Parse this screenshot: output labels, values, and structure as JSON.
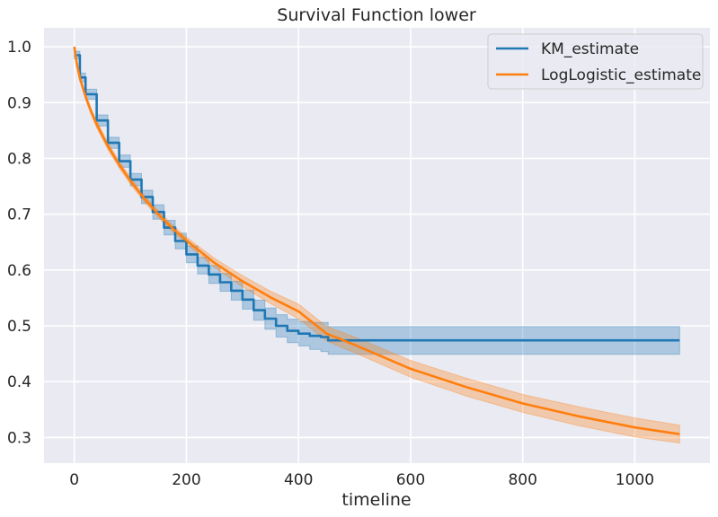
{
  "chart_data": {
    "type": "line",
    "title": "Survival Function lower",
    "xlabel": "timeline",
    "ylabel": "",
    "xlim": [
      -54,
      1134
    ],
    "ylim": [
      0.254,
      1.034
    ],
    "xticks": [
      0,
      200,
      400,
      600,
      800,
      1000
    ],
    "yticks": [
      0.3,
      0.4,
      0.5,
      0.6,
      0.7,
      0.8,
      0.9,
      1.0
    ],
    "xtick_labels": [
      "0",
      "200",
      "400",
      "600",
      "800",
      "1000"
    ],
    "ytick_labels": [
      "0.3",
      "0.4",
      "0.5",
      "0.6",
      "0.7",
      "0.8",
      "0.9",
      "1.0"
    ],
    "grid": true,
    "legend_position": "top-right",
    "background": "#eaeaf2",
    "series": [
      {
        "name": "KM_estimate",
        "color": "#1f77b4",
        "step": true,
        "x": [
          0,
          10,
          20,
          40,
          60,
          80,
          100,
          120,
          140,
          160,
          180,
          200,
          220,
          240,
          260,
          280,
          300,
          320,
          340,
          360,
          380,
          400,
          420,
          440,
          453,
          1080
        ],
        "y": [
          0.985,
          0.945,
          0.915,
          0.868,
          0.828,
          0.795,
          0.762,
          0.731,
          0.704,
          0.676,
          0.652,
          0.628,
          0.608,
          0.592,
          0.578,
          0.563,
          0.547,
          0.528,
          0.513,
          0.5,
          0.491,
          0.486,
          0.482,
          0.48,
          0.474,
          0.474
        ],
        "ci_lower": [
          0.978,
          0.937,
          0.906,
          0.858,
          0.818,
          0.784,
          0.751,
          0.719,
          0.691,
          0.663,
          0.638,
          0.613,
          0.593,
          0.576,
          0.562,
          0.546,
          0.53,
          0.51,
          0.494,
          0.48,
          0.47,
          0.464,
          0.458,
          0.454,
          0.449,
          0.449
        ],
        "ci_upper": [
          0.992,
          0.953,
          0.924,
          0.878,
          0.838,
          0.806,
          0.773,
          0.743,
          0.717,
          0.689,
          0.666,
          0.643,
          0.623,
          0.608,
          0.594,
          0.58,
          0.564,
          0.546,
          0.532,
          0.52,
          0.512,
          0.508,
          0.506,
          0.506,
          0.499,
          0.499
        ]
      },
      {
        "name": "LogLogistic_estimate",
        "color": "#ff7f0e",
        "x": [
          0,
          5,
          10,
          20,
          30,
          40,
          60,
          80,
          100,
          125,
          150,
          175,
          200,
          250,
          300,
          350,
          400,
          450,
          500,
          600,
          700,
          800,
          900,
          1000,
          1080
        ],
        "y": [
          1.0,
          0.967,
          0.944,
          0.911,
          0.884,
          0.861,
          0.822,
          0.789,
          0.76,
          0.728,
          0.7,
          0.675,
          0.653,
          0.613,
          0.58,
          0.551,
          0.526,
          0.486,
          0.466,
          0.423,
          0.39,
          0.361,
          0.338,
          0.318,
          0.306
        ],
        "ci_lower": [
          1.0,
          0.964,
          0.94,
          0.906,
          0.879,
          0.855,
          0.816,
          0.783,
          0.754,
          0.722,
          0.694,
          0.669,
          0.647,
          0.605,
          0.57,
          0.54,
          0.513,
          0.473,
          0.452,
          0.408,
          0.374,
          0.345,
          0.321,
          0.301,
          0.29
        ],
        "ci_upper": [
          1.0,
          0.97,
          0.948,
          0.916,
          0.889,
          0.867,
          0.828,
          0.795,
          0.766,
          0.734,
          0.706,
          0.681,
          0.659,
          0.621,
          0.59,
          0.562,
          0.539,
          0.499,
          0.48,
          0.438,
          0.406,
          0.377,
          0.355,
          0.335,
          0.322
        ]
      }
    ]
  }
}
